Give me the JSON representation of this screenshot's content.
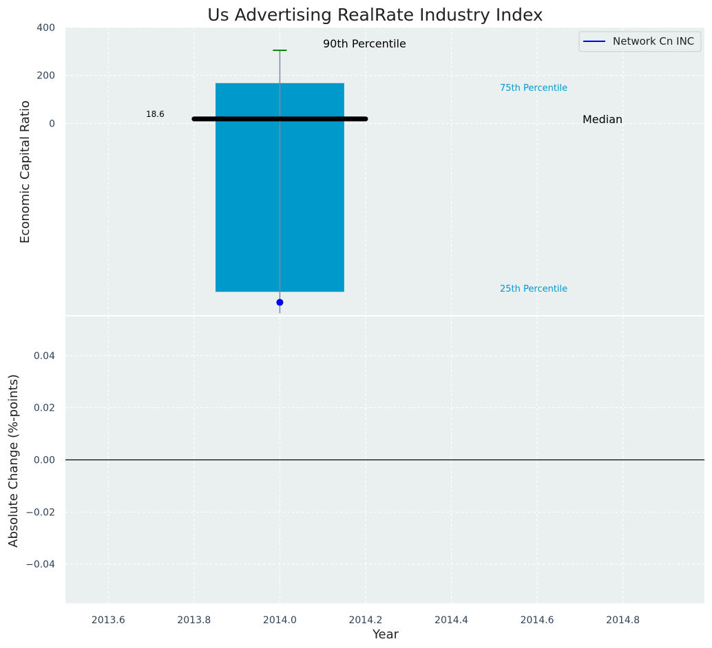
{
  "colors": {
    "panel_bg": "#eaeff0",
    "grid": "#ffffff",
    "box": "#0099cc",
    "median": "#000000",
    "whisker": "#808b96",
    "cap": "#008000",
    "point": "#0000ee",
    "zero_line": "#000000",
    "tick_text": "#2e4053",
    "label_text": "#222222"
  },
  "chart_data": [
    {
      "type": "box",
      "title": "Us Advertising RealRate Industry Index",
      "xlabel": "",
      "ylabel": "Economic Capital Ratio",
      "xlim": [
        2013.5,
        2014.99
      ],
      "ylim": [
        -800,
        400
      ],
      "x_ticks": [
        2013.6,
        2013.8,
        2014.0,
        2014.2,
        2014.4,
        2014.6,
        2014.8
      ],
      "y_ticks": [
        0,
        200,
        400
      ],
      "y_tick_labels": [
        "0",
        "200",
        "400"
      ],
      "grid": true,
      "box": {
        "x": 2014.0,
        "half_width": 0.15,
        "p25": -703,
        "p75": 168,
        "median": 18.6,
        "median_half_width": 0.2,
        "p90": 305,
        "whisker_low": -793
      },
      "company": {
        "name": "Network Cn INC",
        "x": 2014.0,
        "value": -747
      },
      "median_value_label": "18.6",
      "annotations": {
        "p90": "90th Percentile",
        "p75": "75th Percentile",
        "median": "Median",
        "p25": "25th Percentile"
      },
      "legend": {
        "entries": [
          "Network Cn INC"
        ],
        "position": "top-right"
      }
    },
    {
      "type": "line",
      "xlabel": "Year",
      "ylabel": "Absolute Change (%-points)",
      "xlim": [
        2013.5,
        2014.99
      ],
      "ylim": [
        -0.055,
        0.055
      ],
      "x_ticks": [
        2013.6,
        2013.8,
        2014.0,
        2014.2,
        2014.4,
        2014.6,
        2014.8
      ],
      "x_tick_labels": [
        "2013.6",
        "2013.8",
        "2014.0",
        "2014.2",
        "2014.4",
        "2014.6",
        "2014.8"
      ],
      "y_ticks": [
        0.04,
        0.02,
        0.0,
        -0.02,
        -0.04
      ],
      "y_tick_labels": [
        "0.04",
        "0.02",
        "0.00",
        "−0.02",
        "−0.04"
      ],
      "grid": true,
      "zero_line": 0.0
    }
  ]
}
